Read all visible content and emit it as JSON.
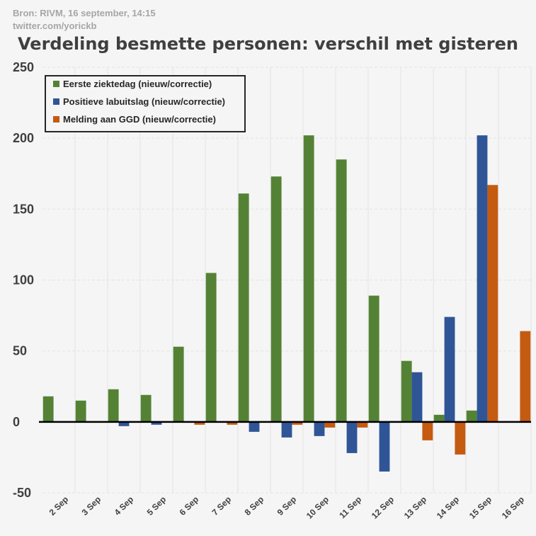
{
  "source_lines": [
    "Bron: RIVM, 16 september, 14:15",
    "twitter.com/yorickb"
  ],
  "chart_data": {
    "type": "bar",
    "title": "Verdeling besmette personen: verschil met gisteren",
    "xlabel": "",
    "ylabel": "",
    "ylim": [
      -50,
      250
    ],
    "yticks": [
      -50,
      0,
      50,
      100,
      150,
      200,
      250
    ],
    "grid": true,
    "legend_position": "top-left",
    "categories": [
      "2 Sep",
      "3 Sep",
      "4 Sep",
      "5 Sep",
      "6 Sep",
      "7 Sep",
      "8 Sep",
      "9 Sep",
      "10 Sep",
      "11 Sep",
      "12 Sep",
      "13 Sep",
      "14 Sep",
      "15 Sep",
      "16 Sep"
    ],
    "series": [
      {
        "name": "Eerste ziektedag (nieuw/correctie)",
        "color": "#548235",
        "values": [
          18,
          15,
          23,
          19,
          53,
          105,
          161,
          173,
          202,
          185,
          89,
          43,
          5,
          8,
          0
        ]
      },
      {
        "name": "Positieve labuitslag (nieuw/correctie)",
        "color": "#2f5597",
        "values": [
          0,
          0,
          -3,
          -2,
          0,
          0,
          -7,
          -11,
          -10,
          -22,
          -35,
          35,
          74,
          202,
          0
        ]
      },
      {
        "name": "Melding aan GGD (nieuw/correctie)",
        "color": "#c55a11",
        "values": [
          0,
          0,
          0,
          0,
          -2,
          -2,
          0,
          -2,
          -4,
          -4,
          0,
          -13,
          -23,
          167,
          64
        ]
      }
    ]
  }
}
